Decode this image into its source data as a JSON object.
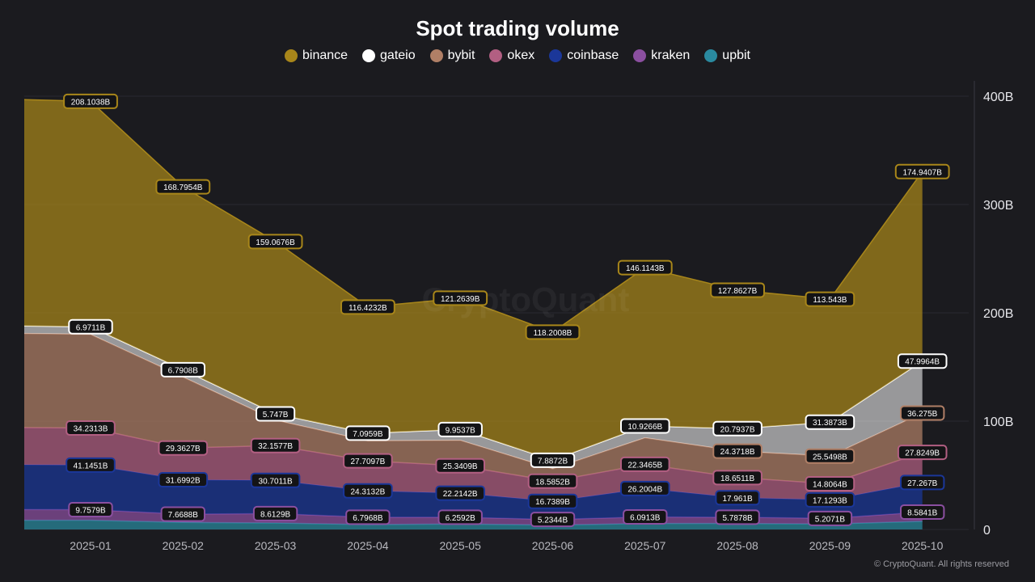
{
  "chart_data": {
    "type": "area",
    "stacked": true,
    "title": "Spot trading volume",
    "legend_position": "top-center",
    "categories": [
      "2025-01",
      "2025-02",
      "2025-03",
      "2025-04",
      "2025-05",
      "2025-06",
      "2025-07",
      "2025-08",
      "2025-09",
      "2025-10"
    ],
    "y_ticks": [
      "0",
      "100B",
      "200B",
      "300B",
      "400B"
    ],
    "ylim": [
      0,
      400
    ],
    "y_unit": "B",
    "grid": true,
    "watermark": "CryptoQuant",
    "series_bottom_to_top": [
      "upbit",
      "kraken",
      "coinbase",
      "okex",
      "bybit",
      "gateio",
      "binance"
    ],
    "series": [
      {
        "name": "binance",
        "color": "#a8861a",
        "values": [
          208.1038,
          168.7954,
          159.0676,
          116.4232,
          121.2639,
          118.2008,
          146.1143,
          127.8627,
          113.543,
          174.9407
        ],
        "labels": [
          "208.1038B",
          "168.7954B",
          "159.0676B",
          "116.4232B",
          "121.2639B",
          "118.2008B",
          "146.1143B",
          "127.8627B",
          "113.543B",
          "174.9407B"
        ]
      },
      {
        "name": "gateio",
        "color": "#ffffff",
        "values": [
          6.9711,
          6.7908,
          5.747,
          7.0959,
          9.9537,
          7.8872,
          10.9266,
          20.7937,
          31.3873,
          47.9964
        ],
        "labels": [
          "6.9711B",
          "6.7908B",
          "5.747B",
          "7.0959B",
          "9.9537B",
          "7.8872B",
          "10.9266B",
          "20.7937B",
          "31.3873B",
          "47.9964B"
        ]
      },
      {
        "name": "bybit",
        "color": "#b07f66",
        "values": [
          86.5,
          65.5,
          23.5,
          18.5,
          23.5,
          11.5,
          24.5,
          24.3718,
          25.5498,
          36.275
        ],
        "labels": [
          null,
          null,
          null,
          null,
          null,
          null,
          null,
          "24.3718B",
          "25.5498B",
          "36.275B"
        ]
      },
      {
        "name": "okex",
        "color": "#b25f82",
        "values": [
          34.2313,
          29.3627,
          32.1577,
          27.7097,
          25.3409,
          18.5852,
          22.3465,
          18.6511,
          14.8064,
          27.8249
        ],
        "labels": [
          "34.2313B",
          "29.3627B",
          "32.1577B",
          "27.7097B",
          "25.3409B",
          "18.5852B",
          "22.3465B",
          "18.6511B",
          "14.8064B",
          "27.8249B"
        ]
      },
      {
        "name": "coinbase",
        "color": "#1b3799",
        "values": [
          41.1451,
          31.6992,
          30.7011,
          24.3132,
          22.2142,
          16.7389,
          26.2004,
          17.961,
          17.1293,
          27.267
        ],
        "labels": [
          "41.1451B",
          "31.6992B",
          "30.7011B",
          "24.3132B",
          "22.2142B",
          "16.7389B",
          "26.2004B",
          "17.961B",
          "17.1293B",
          "27.267B"
        ]
      },
      {
        "name": "kraken",
        "color": "#8b4fa0",
        "values": [
          9.7579,
          7.6688,
          8.6129,
          6.7968,
          6.2592,
          5.2344,
          6.0913,
          5.7878,
          5.2071,
          8.5841
        ],
        "labels": [
          "9.7579B",
          "7.6688B",
          "8.6129B",
          "6.7968B",
          "6.2592B",
          "5.2344B",
          "6.0913B",
          "5.7878B",
          "5.2071B",
          "8.5841B"
        ]
      },
      {
        "name": "upbit",
        "color": "#2a8aa0",
        "values": [
          8.5,
          6.5,
          6.0,
          4.5,
          5.0,
          4.0,
          5.5,
          5.5,
          5.0,
          7.5
        ],
        "labels": [
          null,
          null,
          null,
          null,
          null,
          null,
          null,
          null,
          null,
          null
        ]
      }
    ]
  },
  "legend": [
    {
      "name": "binance",
      "color": "#a8861a"
    },
    {
      "name": "gateio",
      "color": "#ffffff"
    },
    {
      "name": "bybit",
      "color": "#b07f66"
    },
    {
      "name": "okex",
      "color": "#b25f82"
    },
    {
      "name": "coinbase",
      "color": "#1b3799"
    },
    {
      "name": "kraken",
      "color": "#8b4fa0"
    },
    {
      "name": "upbit",
      "color": "#2a8aa0"
    }
  ],
  "footer": "© CryptoQuant. All rights reserved"
}
